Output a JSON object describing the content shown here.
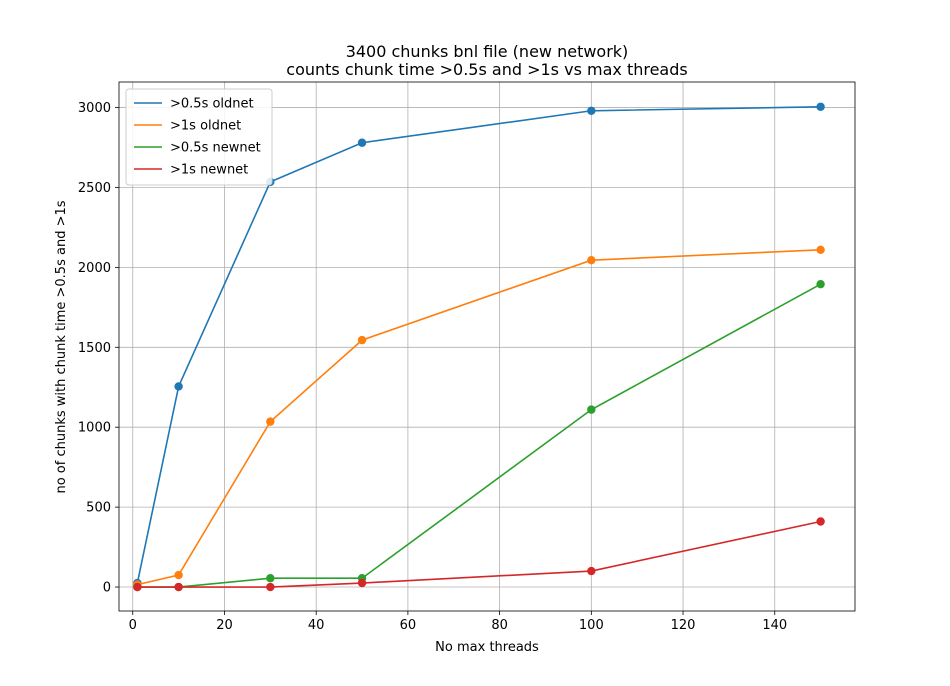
{
  "chart_data": {
    "type": "line",
    "title": "3400 chunks bnl file (new network)",
    "subtitle": "counts chunk time >0.5s and >1s vs max threads",
    "xlabel": "No max threads",
    "ylabel": "no of chunks with chunk time >0.5s and >1s",
    "xlim": [
      -3,
      157.5
    ],
    "ylim": [
      -150,
      3160
    ],
    "xticks": [
      0,
      20,
      40,
      60,
      80,
      100,
      120,
      140
    ],
    "yticks": [
      0,
      500,
      1000,
      1500,
      2000,
      2500,
      3000
    ],
    "grid": true,
    "legend_position": "top-left",
    "x": [
      1,
      10,
      30,
      50,
      100,
      150
    ],
    "series": [
      {
        "name": ">0.5s oldnet",
        "color": "#1f77b4",
        "values": [
          25,
          1255,
          2535,
          2780,
          2980,
          3005
        ]
      },
      {
        "name": ">1s oldnet",
        "color": "#ff7f0e",
        "values": [
          15,
          75,
          1035,
          1545,
          2045,
          2110
        ]
      },
      {
        "name": ">0.5s newnet",
        "color": "#2ca02c",
        "values": [
          0,
          0,
          55,
          55,
          1110,
          1895
        ]
      },
      {
        "name": ">1s newnet",
        "color": "#d62728",
        "values": [
          0,
          0,
          0,
          25,
          100,
          410
        ]
      }
    ]
  }
}
